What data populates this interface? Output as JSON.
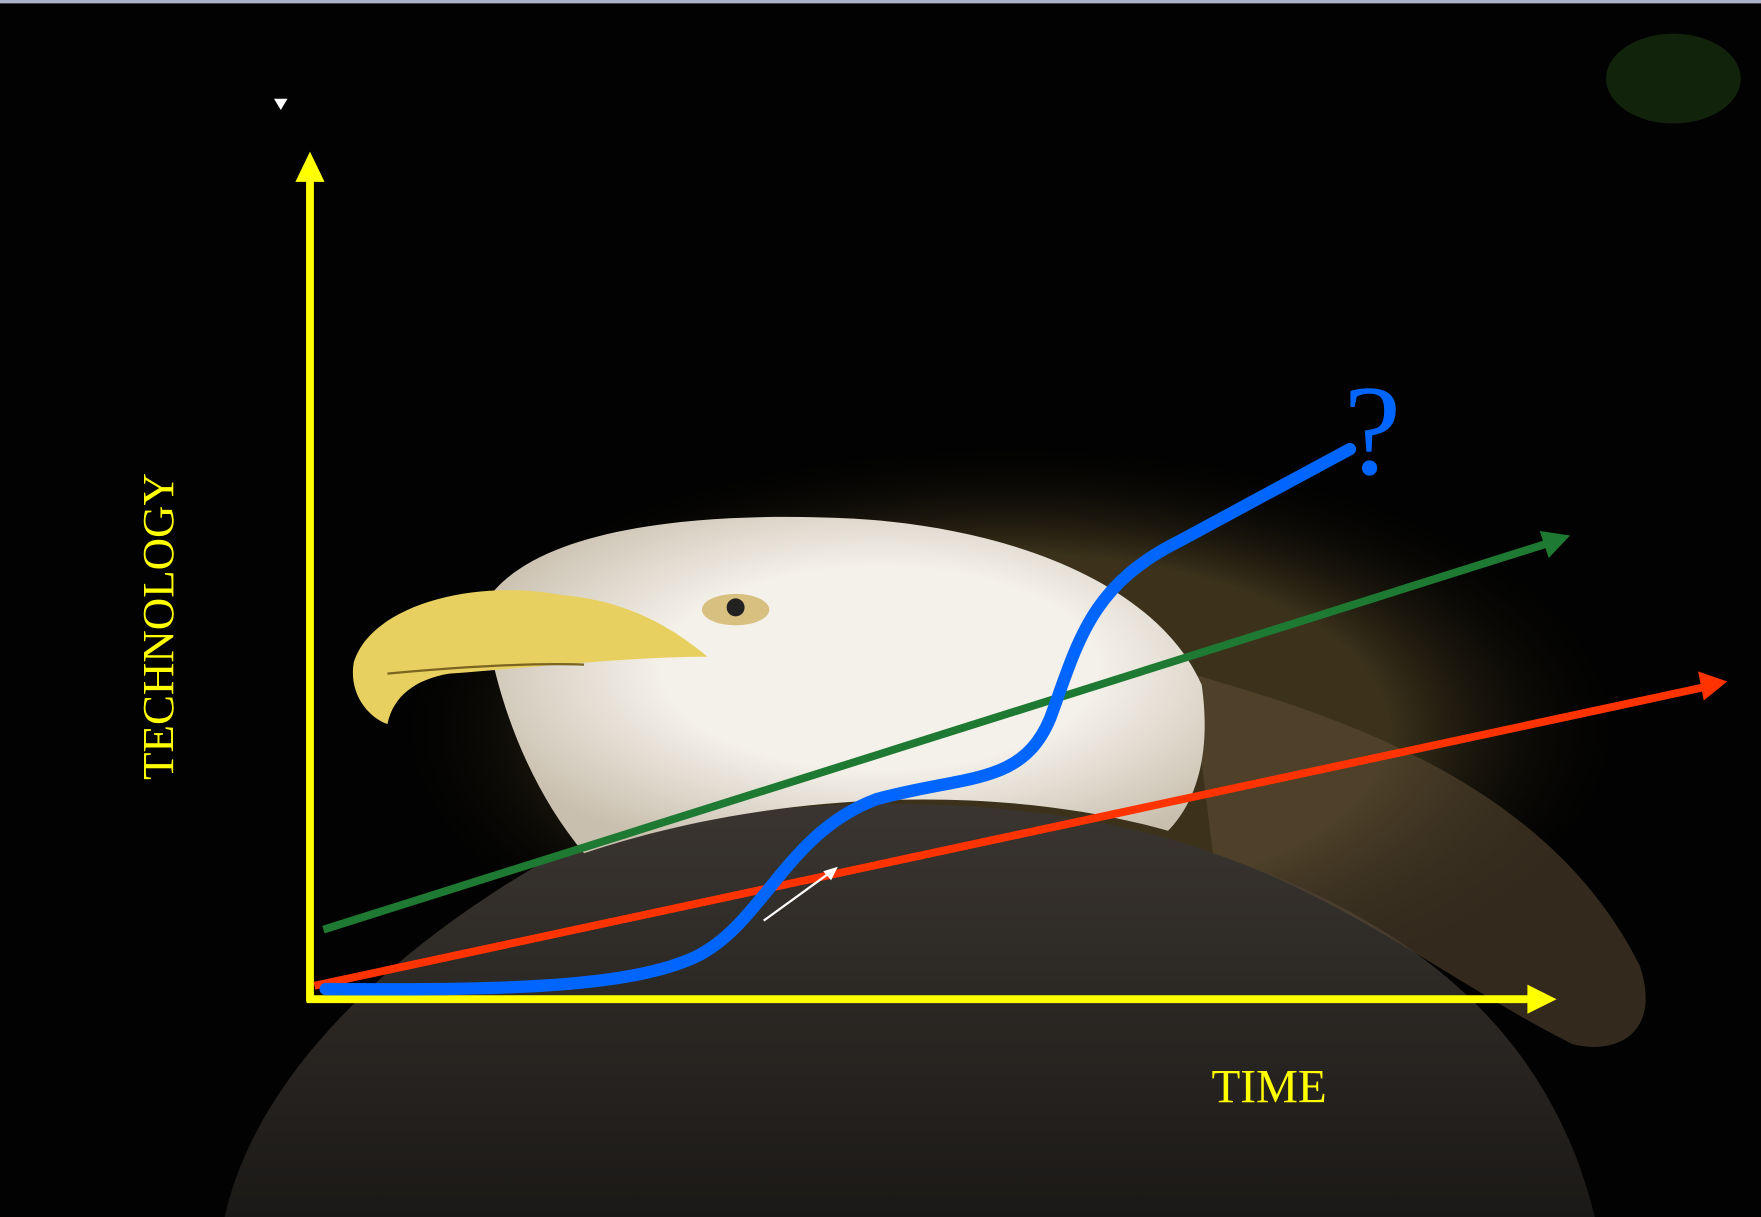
{
  "axes": {
    "y_label": "TECHNOLOGY",
    "x_label": "TIME"
  },
  "annotations": {
    "question": "?"
  }
}
